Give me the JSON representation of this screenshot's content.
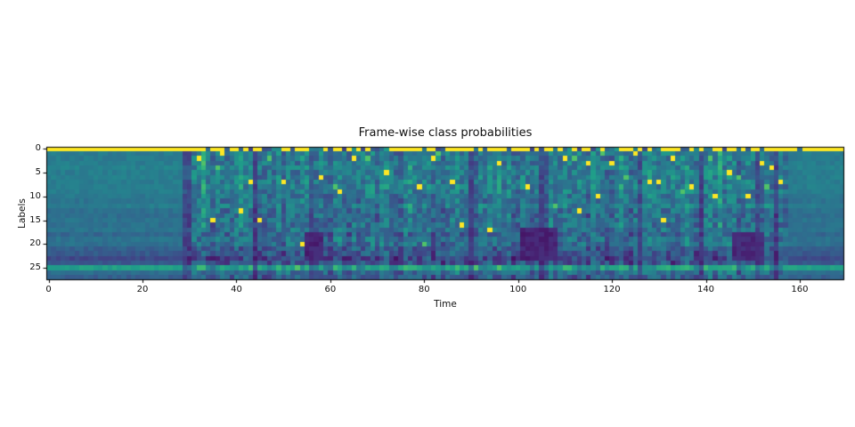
{
  "chart_data": {
    "type": "heatmap",
    "title": "Frame-wise class probabilities",
    "xlabel": "Time",
    "ylabel": "Labels",
    "rows": 28,
    "cols": 170,
    "x_ticks": [
      0,
      20,
      40,
      60,
      80,
      100,
      120,
      140,
      160
    ],
    "y_ticks": [
      0,
      5,
      10,
      15,
      20,
      25
    ],
    "x_range": [
      -0.5,
      169.5
    ],
    "y_range": [
      27.5,
      -0.5
    ],
    "grid": false,
    "legend": "none",
    "colormap": "viridis",
    "colormap_stops": [
      "#440154",
      "#482878",
      "#3e4a89",
      "#31688e",
      "#26828e",
      "#1f9e89",
      "#35b779",
      "#6ece58",
      "#b5de2b",
      "#fde725"
    ],
    "value_range": [
      0,
      1
    ],
    "row_base": [
      1.0,
      0.42,
      0.42,
      0.42,
      0.44,
      0.42,
      0.43,
      0.42,
      0.43,
      0.42,
      0.4,
      0.38,
      0.42,
      0.37,
      0.36,
      0.38,
      0.37,
      0.38,
      0.33,
      0.38,
      0.37,
      0.3,
      0.28,
      0.22,
      0.27,
      0.56,
      0.36,
      0.3
    ],
    "segments": {
      "smooth_left_end": 28,
      "noisy_start": 29,
      "noisy_end": 157,
      "smooth_right_start": 158
    },
    "blank_row": {
      "row": 0,
      "solid_until": 30,
      "solid_from": 161,
      "on_value": 1.0,
      "on_probability": 0.62,
      "off_value_min": 0.2,
      "off_value_max": 0.55
    },
    "hotspots": [
      [
        32,
        2
      ],
      [
        35,
        15
      ],
      [
        37,
        1
      ],
      [
        41,
        13
      ],
      [
        43,
        7
      ],
      [
        45,
        15
      ],
      [
        50,
        7
      ],
      [
        54,
        20
      ],
      [
        58,
        6
      ],
      [
        62,
        9
      ],
      [
        65,
        2
      ],
      [
        72,
        5
      ],
      [
        79,
        8
      ],
      [
        82,
        2
      ],
      [
        86,
        7
      ],
      [
        88,
        16
      ],
      [
        94,
        17
      ],
      [
        96,
        3
      ],
      [
        102,
        8
      ],
      [
        110,
        2
      ],
      [
        113,
        13
      ],
      [
        115,
        3
      ],
      [
        117,
        10
      ],
      [
        120,
        3
      ],
      [
        125,
        1
      ],
      [
        128,
        7
      ],
      [
        130,
        7
      ],
      [
        131,
        15
      ],
      [
        133,
        2
      ],
      [
        137,
        8
      ],
      [
        142,
        10
      ],
      [
        145,
        5
      ],
      [
        149,
        10
      ],
      [
        152,
        3
      ],
      [
        154,
        4
      ],
      [
        156,
        7
      ]
    ],
    "hotspot_value": 1.0,
    "green_spots": [
      [
        33,
        3
      ],
      [
        36,
        4
      ],
      [
        47,
        2
      ],
      [
        53,
        25
      ],
      [
        61,
        8
      ],
      [
        68,
        2
      ],
      [
        80,
        20
      ],
      [
        83,
        1
      ],
      [
        91,
        25
      ],
      [
        96,
        25
      ],
      [
        108,
        12
      ],
      [
        112,
        2
      ],
      [
        118,
        1
      ],
      [
        123,
        6
      ],
      [
        135,
        9
      ],
      [
        141,
        2
      ],
      [
        147,
        6
      ],
      [
        153,
        8
      ]
    ],
    "green_value": 0.72,
    "dark_columns": [
      29,
      30,
      44,
      56,
      90,
      105,
      106,
      126,
      139,
      151,
      155
    ],
    "dark_column_factor": 0.6,
    "bright_columns": [
      33,
      41,
      49,
      77,
      96,
      113,
      122,
      133,
      143
    ],
    "bright_column_boost": 0.1,
    "dark_patches": [
      {
        "t0": 55,
        "t1": 58,
        "l0": 18,
        "l1": 23,
        "value": 0.1
      },
      {
        "t0": 101,
        "t1": 108,
        "l0": 17,
        "l1": 23,
        "value": 0.1
      },
      {
        "t0": 146,
        "t1": 152,
        "l0": 18,
        "l1": 23,
        "value": 0.12
      }
    ],
    "noise": {
      "seed": 11,
      "smooth_amp": 0.035,
      "noisy_amp": 0.13,
      "col_amp": 0.14
    }
  },
  "axes": {
    "x_tick_labels": [
      "0",
      "20",
      "40",
      "60",
      "80",
      "100",
      "120",
      "140",
      "160"
    ],
    "y_tick_labels": [
      "0",
      "5",
      "10",
      "15",
      "20",
      "25"
    ]
  },
  "colors": {
    "background": "#ffffff",
    "text": "#111111",
    "spine": "#000000"
  }
}
